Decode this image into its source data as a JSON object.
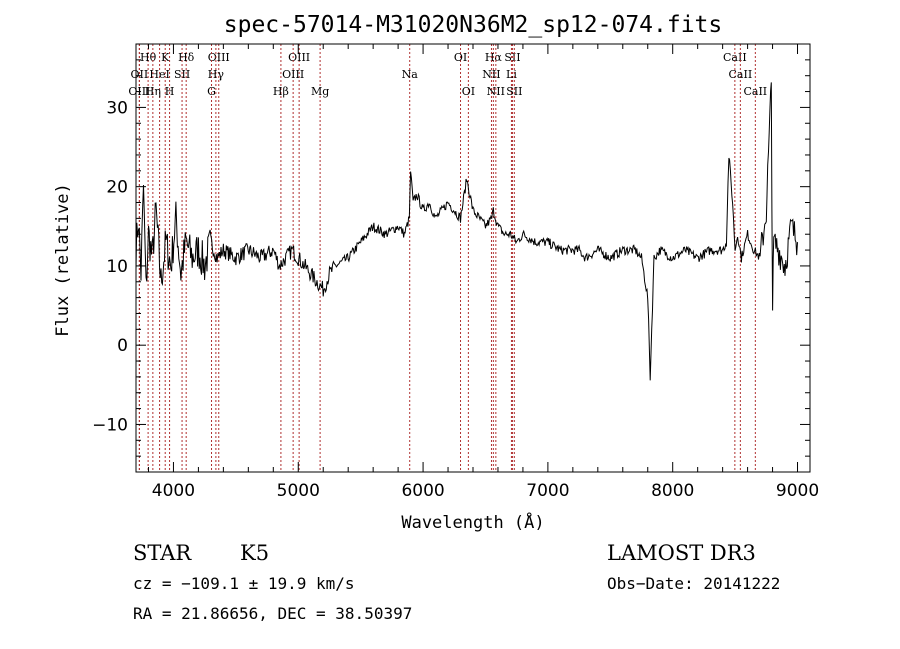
{
  "chart_data": {
    "type": "line",
    "title": "spec-57014-M31020N36M2_sp12-074.fits",
    "xlabel": "Wavelength (Å)",
    "ylabel": "Flux (relative)",
    "xlim": [
      3700,
      9100
    ],
    "ylim": [
      -16,
      38
    ],
    "x_ticks": [
      4000,
      5000,
      6000,
      7000,
      8000,
      9000
    ],
    "y_ticks": [
      -10,
      0,
      10,
      20,
      30
    ],
    "grid": false,
    "series": [
      {
        "color": "#000000",
        "x": [
          3700,
          3720,
          3740,
          3760,
          3780,
          3800,
          3830,
          3860,
          3900,
          3940,
          3980,
          4020,
          4060,
          4100,
          4150,
          4200,
          4250,
          4300,
          4350,
          4400,
          4500,
          4600,
          4700,
          4800,
          4850,
          4900,
          4950,
          5000,
          5050,
          5100,
          5150,
          5200,
          5250,
          5300,
          5400,
          5500,
          5600,
          5700,
          5800,
          5850,
          5890,
          5900,
          5920,
          5950,
          6000,
          6050,
          6100,
          6150,
          6200,
          6250,
          6300,
          6350,
          6400,
          6450,
          6500,
          6550,
          6563,
          6600,
          6650,
          6700,
          6750,
          6800,
          6900,
          7000,
          7100,
          7200,
          7250,
          7300,
          7400,
          7500,
          7600,
          7700,
          7750,
          7800,
          7820,
          7850,
          7900,
          8000,
          8100,
          8200,
          8300,
          8400,
          8430,
          8450,
          8480,
          8500,
          8520,
          8550,
          8600,
          8650,
          8700,
          8750,
          8790,
          8800,
          8810,
          8850,
          8900,
          8950,
          9000
        ],
        "y": [
          12,
          16,
          9,
          20,
          7,
          14,
          11,
          17,
          8,
          13,
          10,
          16,
          9,
          13,
          11,
          12,
          10,
          13,
          11,
          12,
          11,
          12,
          11,
          12,
          10,
          11,
          12,
          11,
          10,
          9,
          8,
          7,
          9,
          10,
          11,
          13,
          15,
          14,
          15,
          14,
          16,
          22,
          18,
          19,
          17,
          18,
          16,
          17,
          18,
          17,
          16,
          21,
          17,
          16,
          15,
          16,
          17,
          15,
          14,
          14,
          13,
          14,
          13,
          13,
          12,
          12,
          12,
          11,
          12,
          11,
          12,
          12,
          11,
          6,
          -4,
          11,
          12,
          11,
          12,
          11,
          12,
          12,
          13,
          24,
          18,
          12,
          14,
          11,
          14,
          12,
          11,
          17,
          33,
          5,
          13,
          12,
          10,
          15,
          13
        ]
      }
    ],
    "spectral_lines": [
      {
        "name": "Hθ",
        "wl": 3797,
        "row": 0
      },
      {
        "name": "OII",
        "wl": 3727,
        "row": 1
      },
      {
        "name": "OIII",
        "wl": 3727,
        "row": 2
      },
      {
        "name": "K",
        "wl": 3934,
        "row": 0
      },
      {
        "name": "HeI",
        "wl": 3889,
        "row": 1
      },
      {
        "name": "Hη",
        "wl": 3835,
        "row": 2
      },
      {
        "name": "SII",
        "wl": 4069,
        "row": 1
      },
      {
        "name": "H",
        "wl": 3969,
        "row": 2
      },
      {
        "name": "Hδ",
        "wl": 4102,
        "row": 0
      },
      {
        "name": "OIII",
        "wl": 4363,
        "row": 0
      },
      {
        "name": "Hγ",
        "wl": 4340,
        "row": 1
      },
      {
        "name": "G",
        "wl": 4305,
        "row": 2
      },
      {
        "name": "OIII",
        "wl": 5007,
        "row": 0
      },
      {
        "name": "OIII",
        "wl": 4959,
        "row": 1
      },
      {
        "name": "Hβ",
        "wl": 4861,
        "row": 2
      },
      {
        "name": "Mg",
        "wl": 5175,
        "row": 2
      },
      {
        "name": "Na",
        "wl": 5893,
        "row": 1
      },
      {
        "name": "OI",
        "wl": 6300,
        "row": 0
      },
      {
        "name": "OI",
        "wl": 6363,
        "row": 2
      },
      {
        "name": "Hα",
        "wl": 6563,
        "row": 0
      },
      {
        "name": "SII",
        "wl": 6716,
        "row": 0
      },
      {
        "name": "NII",
        "wl": 6548,
        "row": 1
      },
      {
        "name": "Li",
        "wl": 6708,
        "row": 1
      },
      {
        "name": "NII",
        "wl": 6583,
        "row": 2
      },
      {
        "name": "SII",
        "wl": 6731,
        "row": 2
      },
      {
        "name": "CaII",
        "wl": 8498,
        "row": 0
      },
      {
        "name": "CaII",
        "wl": 8542,
        "row": 1
      },
      {
        "name": "CaII",
        "wl": 8662,
        "row": 2
      }
    ]
  },
  "info": {
    "object_type": "STAR",
    "subclass": "K5",
    "survey": "LAMOST DR3",
    "cz": "cz = −109.1 ± 19.9 km/s",
    "obs_date": "Obs−Date: 20141222",
    "coords": "RA =  21.86656, DEC =  38.50397"
  }
}
